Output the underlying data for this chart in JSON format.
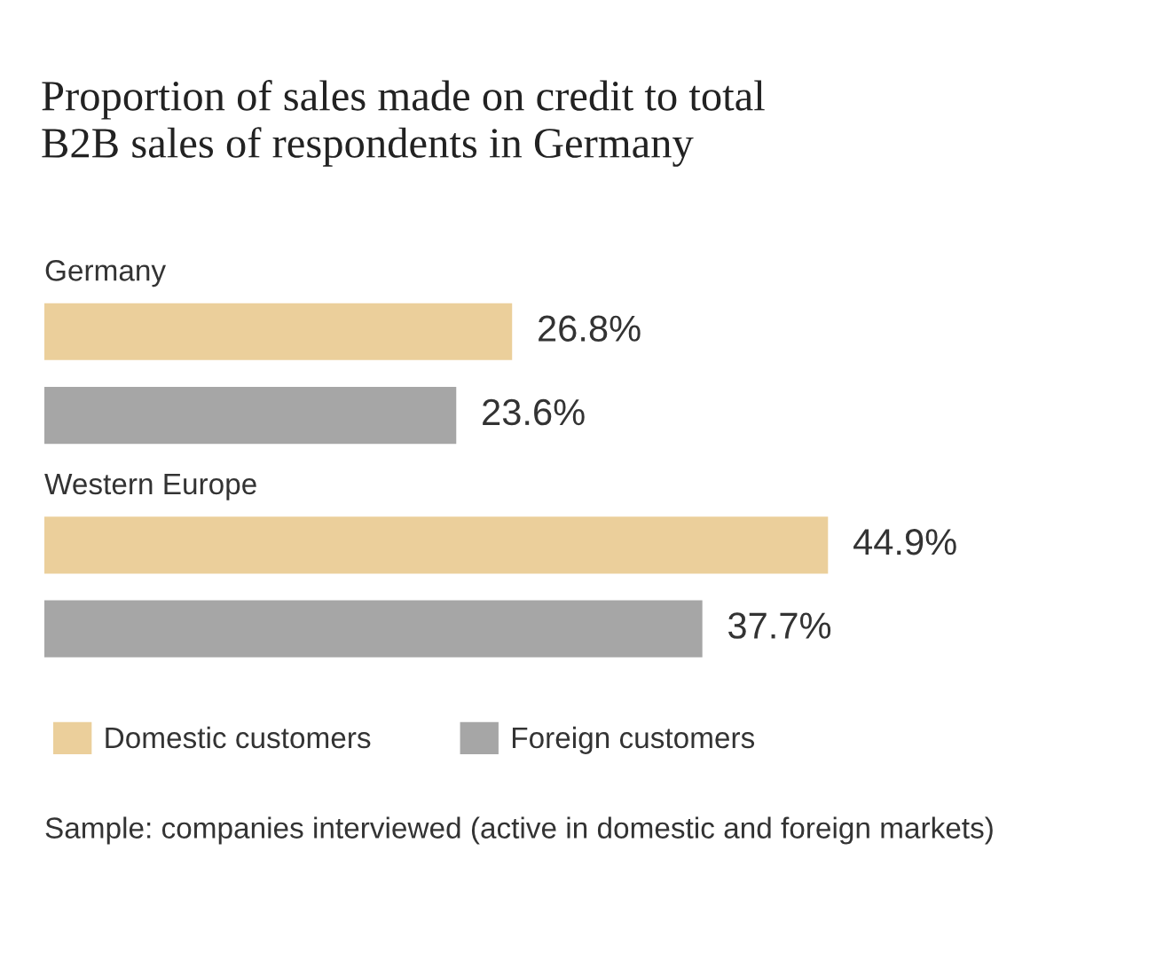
{
  "chart_data": {
    "type": "bar",
    "orientation": "horizontal",
    "title": "Proportion of sales made on credit to total\nB2B sales of respondents in Germany",
    "categories": [
      "Germany",
      "Western Europe"
    ],
    "series": [
      {
        "name": "Domestic customers",
        "color": "#ebcf9b",
        "values": [
          26.8,
          44.9
        ],
        "value_labels": [
          "26.8%",
          "44.9%"
        ]
      },
      {
        "name": "Foreign customers",
        "color": "#a6a6a6",
        "values": [
          23.6,
          37.7
        ],
        "value_labels": [
          "23.6%",
          "37.7%"
        ]
      }
    ],
    "legend": "bottom left",
    "annotations": [
      "Sample: companies interviewed (active in domestic and foreign markets)"
    ]
  }
}
